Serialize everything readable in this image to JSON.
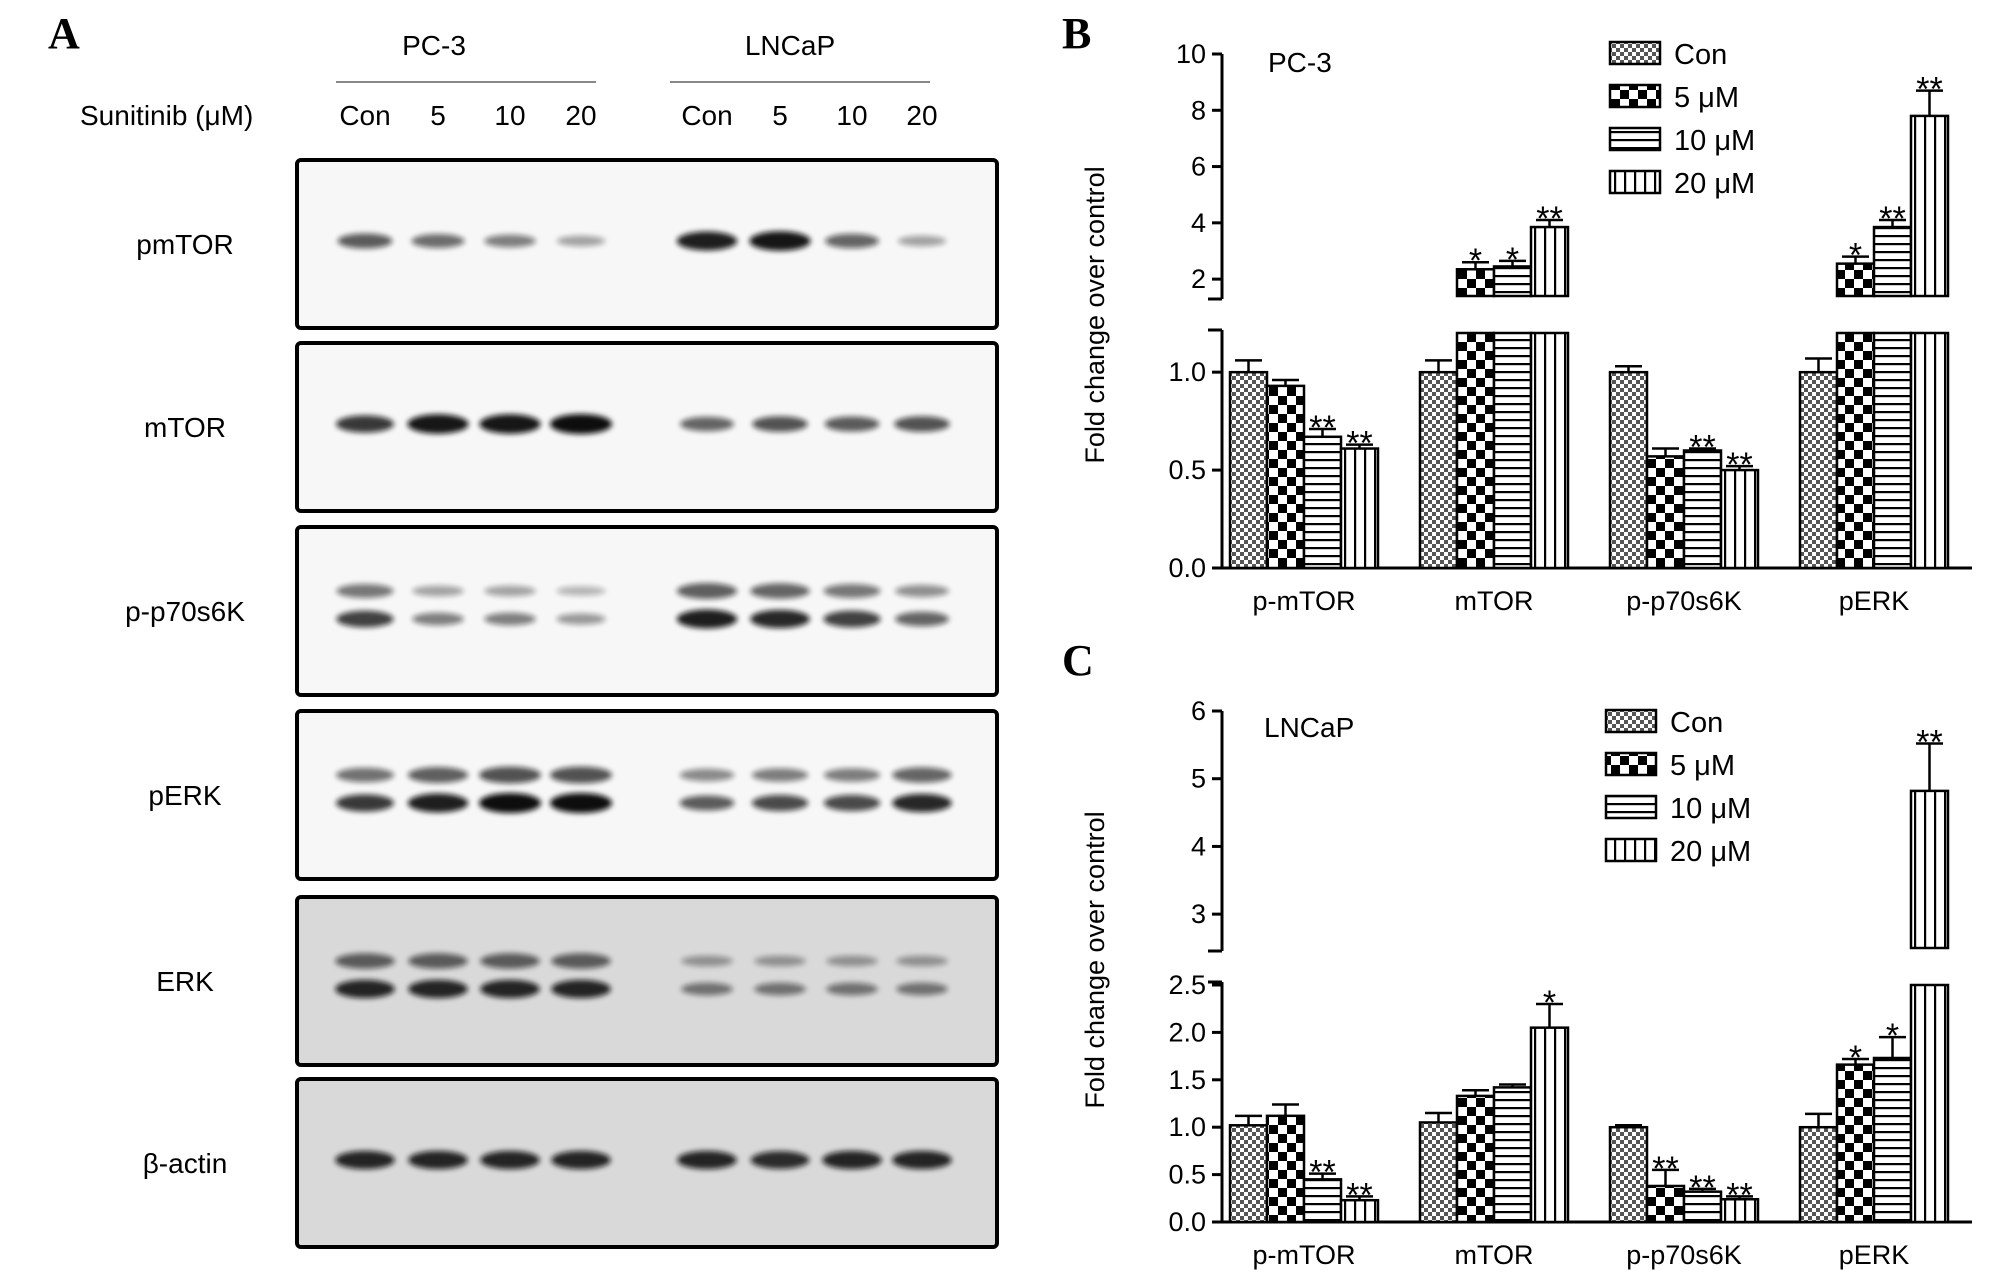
{
  "panelA": {
    "label": "A",
    "treatment_label": "Sunitinib (μM)",
    "cell_lines": [
      "PC-3",
      "LNCaP"
    ],
    "lanes": [
      "Con",
      "5",
      "10",
      "20"
    ],
    "blots": [
      {
        "label": "pmTOR",
        "pc3": [
          0.55,
          0.45,
          0.35,
          0.15
        ],
        "lncap": [
          0.9,
          0.95,
          0.5,
          0.15
        ],
        "double": false,
        "gray": false
      },
      {
        "label": "mTOR",
        "pc3": [
          0.75,
          0.95,
          0.95,
          1.0
        ],
        "lncap": [
          0.5,
          0.6,
          0.55,
          0.6
        ],
        "double": false,
        "gray": false
      },
      {
        "label": "p-p70s6K",
        "pc3": [
          0.7,
          0.35,
          0.35,
          0.2
        ],
        "lncap": [
          0.9,
          0.85,
          0.7,
          0.5
        ],
        "double": true,
        "gray": false
      },
      {
        "label": "pERK",
        "pc3": [
          0.75,
          0.9,
          1.0,
          1.0
        ],
        "lncap": [
          0.55,
          0.65,
          0.65,
          0.85
        ],
        "double": true,
        "gray": false
      },
      {
        "label": "ERK",
        "pc3": [
          0.85,
          0.85,
          0.85,
          0.85
        ],
        "lncap": [
          0.35,
          0.35,
          0.35,
          0.35
        ],
        "double": true,
        "gray": true
      },
      {
        "label": "β-actin",
        "pc3": [
          0.85,
          0.85,
          0.85,
          0.85
        ],
        "lncap": [
          0.85,
          0.8,
          0.85,
          0.85
        ],
        "double": false,
        "gray": true
      }
    ]
  },
  "chart_data": [
    {
      "type": "bar",
      "panel": "B",
      "annotation": "PC-3",
      "ylabel": "Fold change over control",
      "categories": [
        "p-mTOR",
        "mTOR",
        "p-p70s6K",
        "pERK"
      ],
      "y_axis_break": {
        "lower": [
          0,
          1.2
        ],
        "upper": [
          1.4,
          10
        ]
      },
      "lower_ticks": [
        "0.0",
        "0.5",
        "1.0"
      ],
      "upper_ticks": [
        "2",
        "4",
        "6",
        "8",
        "10"
      ],
      "series": [
        {
          "name": "Con",
          "values": [
            1.0,
            1.0,
            1.0,
            1.0
          ],
          "errors": [
            0.06,
            0.06,
            0.03,
            0.07
          ]
        },
        {
          "name": "5 μM",
          "values": [
            0.93,
            2.35,
            0.57,
            2.55
          ],
          "errors": [
            0.03,
            0.25,
            0.04,
            0.25
          ]
        },
        {
          "name": "10 μM",
          "values": [
            0.67,
            2.45,
            0.6,
            3.85
          ],
          "errors": [
            0.04,
            0.2,
            0.01,
            0.25
          ]
        },
        {
          "name": "20 μM",
          "values": [
            0.61,
            3.85,
            0.5,
            7.8
          ],
          "errors": [
            0.02,
            0.25,
            0.02,
            0.9
          ]
        }
      ],
      "significance": [
        [
          "",
          "",
          "",
          ""
        ],
        [
          "",
          "*",
          "",
          "*"
        ],
        [
          "**",
          "*",
          "**",
          "**"
        ],
        [
          "**",
          "**",
          "**",
          "**"
        ]
      ]
    },
    {
      "type": "bar",
      "panel": "C",
      "annotation": "LNCaP",
      "ylabel": "Fold change over control",
      "categories": [
        "p-mTOR",
        "mTOR",
        "p-p70s6K",
        "pERK"
      ],
      "y_axis_break": {
        "lower": [
          0,
          2.5
        ],
        "upper": [
          2.5,
          6
        ]
      },
      "lower_ticks": [
        "0.0",
        "0.5",
        "1.0",
        "1.5",
        "2.0",
        "2.5"
      ],
      "upper_ticks": [
        "3",
        "4",
        "5",
        "6"
      ],
      "series": [
        {
          "name": "Con",
          "values": [
            1.02,
            1.05,
            1.0,
            1.0
          ],
          "errors": [
            0.1,
            0.1,
            0.02,
            0.14
          ]
        },
        {
          "name": "5 μM",
          "values": [
            1.12,
            1.33,
            0.38,
            1.66
          ],
          "errors": [
            0.12,
            0.06,
            0.17,
            0.06
          ]
        },
        {
          "name": "10 μM",
          "values": [
            0.45,
            1.42,
            0.32,
            1.73
          ],
          "errors": [
            0.06,
            0.03,
            0.03,
            0.22
          ]
        },
        {
          "name": "20 μM",
          "values": [
            0.23,
            2.05,
            0.24,
            4.82
          ],
          "errors": [
            0.04,
            0.25,
            0.03,
            0.7
          ]
        }
      ],
      "significance": [
        [
          "",
          "",
          "",
          ""
        ],
        [
          "",
          "",
          "**",
          "*"
        ],
        [
          "**",
          "",
          "**",
          "*"
        ],
        [
          "**",
          "*",
          "**",
          "**"
        ]
      ]
    }
  ],
  "panel_labels": {
    "B": "B",
    "C": "C"
  },
  "colors": {
    "ink": "#000000",
    "paper": "#ffffff",
    "band": "#111111",
    "gray_blot_bg": "#d9d9d9"
  }
}
